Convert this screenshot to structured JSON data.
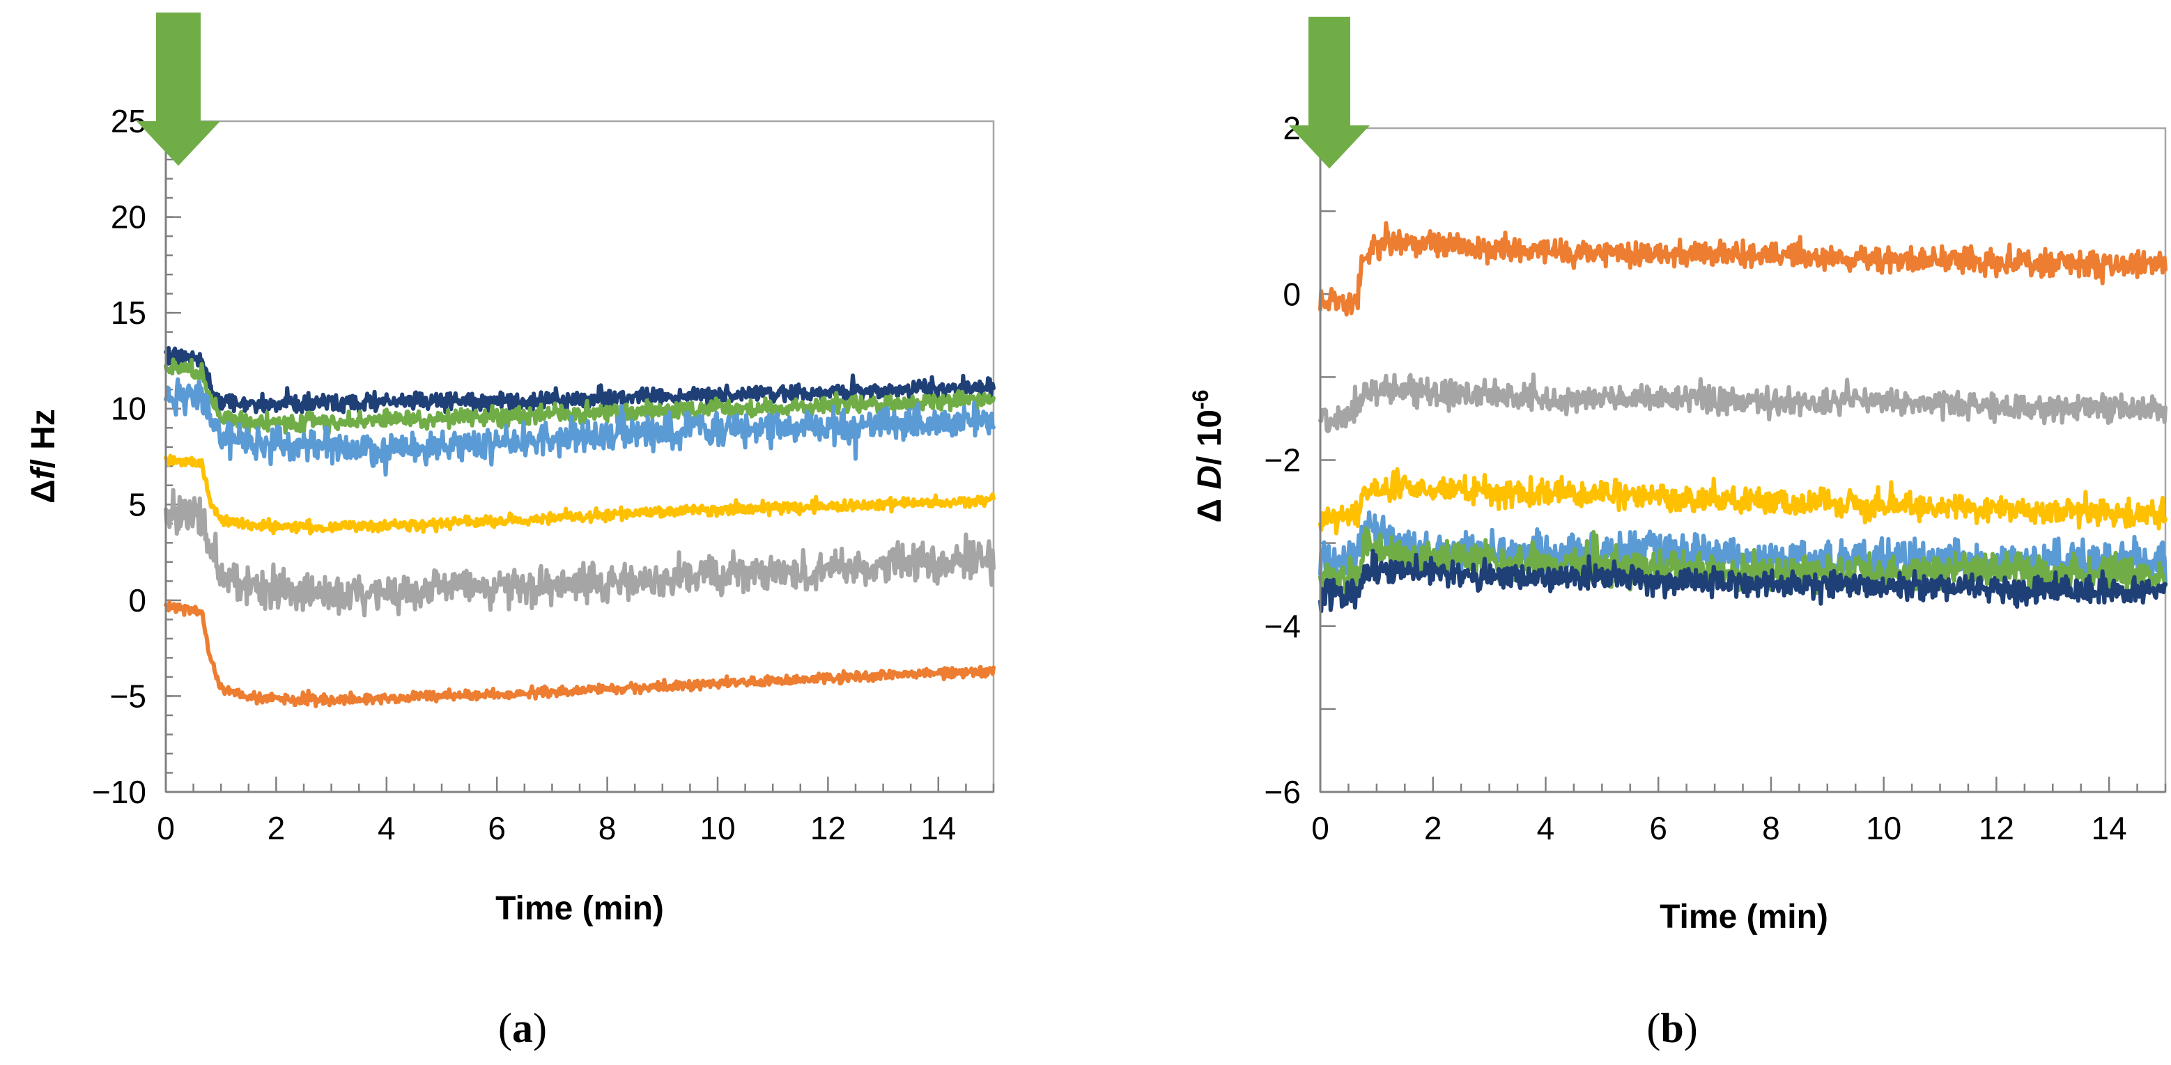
{
  "colors": {
    "navy": "#1f3f77",
    "green": "#70ad47",
    "light_blue": "#5b9bd5",
    "yellow": "#ffc000",
    "gray": "#a5a5a5",
    "orange": "#ed7d31",
    "arrow": "#70ad47"
  },
  "panel_labels": {
    "a": "a",
    "b": "b"
  },
  "chart_data": [
    {
      "type": "line",
      "panel": "a",
      "title": "",
      "xlabel": "Time (min)",
      "ylabel_prefix": "Δ",
      "ylabel_var": "f",
      "ylabel_suffix": "/ Hz",
      "xlim": [
        0,
        15
      ],
      "ylim": [
        -10,
        25
      ],
      "xticks": [
        0,
        2,
        4,
        6,
        8,
        10,
        12,
        14
      ],
      "xtick_labels": [
        "0",
        "2",
        "4",
        "6",
        "8",
        "10",
        "12",
        "14"
      ],
      "yticks": [
        -10,
        -5,
        0,
        5,
        10,
        15,
        20,
        25
      ],
      "ytick_labels": [
        "−10",
        "−5",
        "0",
        "5",
        "10",
        "15",
        "20",
        "25"
      ],
      "annotation": "injection-arrow at t = 0",
      "series": [
        {
          "name": "navy",
          "color": "#1f3f77",
          "noise": 0.35,
          "points": [
            [
              0,
              12.8
            ],
            [
              0.65,
              12.6
            ],
            [
              0.8,
              11.2
            ],
            [
              1.0,
              10.4
            ],
            [
              1.5,
              10.2
            ],
            [
              3,
              10.3
            ],
            [
              5,
              10.4
            ],
            [
              7,
              10.4
            ],
            [
              9,
              10.6
            ],
            [
              11,
              10.8
            ],
            [
              13,
              11.0
            ],
            [
              15,
              11.2
            ]
          ]
        },
        {
          "name": "green",
          "color": "#70ad47",
          "noise": 0.35,
          "points": [
            [
              0,
              12.2
            ],
            [
              0.65,
              12.0
            ],
            [
              0.8,
              10.4
            ],
            [
              1.0,
              9.6
            ],
            [
              1.5,
              9.3
            ],
            [
              3,
              9.3
            ],
            [
              5,
              9.5
            ],
            [
              7,
              9.7
            ],
            [
              9,
              9.9
            ],
            [
              11,
              10.1
            ],
            [
              13,
              10.3
            ],
            [
              15,
              10.5
            ]
          ]
        },
        {
          "name": "light_blue",
          "color": "#5b9bd5",
          "noise": 0.65,
          "points": [
            [
              0,
              10.7
            ],
            [
              0.65,
              10.5
            ],
            [
              0.8,
              9.2
            ],
            [
              1.0,
              8.5
            ],
            [
              1.5,
              8.2
            ],
            [
              3,
              8.0
            ],
            [
              4,
              7.9
            ],
            [
              6,
              8.2
            ],
            [
              8,
              8.6
            ],
            [
              10,
              8.9
            ],
            [
              12,
              9.0
            ],
            [
              15,
              9.4
            ]
          ]
        },
        {
          "name": "yellow",
          "color": "#ffc000",
          "noise": 0.22,
          "points": [
            [
              0,
              7.3
            ],
            [
              0.65,
              7.2
            ],
            [
              0.8,
              5.2
            ],
            [
              1.0,
              4.2
            ],
            [
              1.5,
              3.9
            ],
            [
              3,
              3.8
            ],
            [
              5,
              4.0
            ],
            [
              7,
              4.3
            ],
            [
              9,
              4.6
            ],
            [
              11,
              4.8
            ],
            [
              13,
              5.0
            ],
            [
              15,
              5.2
            ]
          ]
        },
        {
          "name": "gray",
          "color": "#a5a5a5",
          "noise": 0.75,
          "points": [
            [
              0,
              4.6
            ],
            [
              0.65,
              4.4
            ],
            [
              0.8,
              2.4
            ],
            [
              1.0,
              1.2
            ],
            [
              1.5,
              0.6
            ],
            [
              3,
              0.3
            ],
            [
              5,
              0.6
            ],
            [
              7,
              0.8
            ],
            [
              9,
              1.2
            ],
            [
              11,
              1.5
            ],
            [
              13,
              1.8
            ],
            [
              15,
              2.1
            ]
          ]
        },
        {
          "name": "orange",
          "color": "#ed7d31",
          "noise": 0.2,
          "points": [
            [
              0,
              -0.2
            ],
            [
              0.65,
              -0.6
            ],
            [
              0.8,
              -3.0
            ],
            [
              1.0,
              -4.6
            ],
            [
              1.5,
              -5.1
            ],
            [
              3,
              -5.2
            ],
            [
              5,
              -5.0
            ],
            [
              7,
              -4.8
            ],
            [
              9,
              -4.5
            ],
            [
              11,
              -4.2
            ],
            [
              13,
              -3.9
            ],
            [
              15,
              -3.7
            ]
          ]
        }
      ]
    },
    {
      "type": "line",
      "panel": "b",
      "title": "",
      "xlabel": "Time (min)",
      "ylabel_prefix": "Δ ",
      "ylabel_var": "D",
      "ylabel_suffix": "/ 10",
      "ylabel_exponent": "-6",
      "xlim": [
        0,
        15
      ],
      "ylim": [
        -6,
        2
      ],
      "xticks": [
        0,
        2,
        4,
        6,
        8,
        10,
        12,
        14
      ],
      "xtick_labels": [
        "0",
        "2",
        "4",
        "6",
        "8",
        "10",
        "12",
        "14"
      ],
      "yticks": [
        -6,
        -5,
        -4,
        -3,
        -2,
        -1,
        0,
        1,
        2
      ],
      "ytick_labels": [
        "−6",
        "",
        "−4",
        "",
        "−2",
        "",
        "0",
        "",
        "2"
      ],
      "annotation": "injection-arrow at t = 0",
      "series": [
        {
          "name": "orange",
          "color": "#ed7d31",
          "noise": 0.12,
          "points": [
            [
              0,
              -0.05
            ],
            [
              0.65,
              -0.1
            ],
            [
              0.75,
              0.4
            ],
            [
              1.0,
              0.6
            ],
            [
              2,
              0.6
            ],
            [
              4,
              0.5
            ],
            [
              6,
              0.5
            ],
            [
              8,
              0.45
            ],
            [
              10,
              0.42
            ],
            [
              12,
              0.38
            ],
            [
              15,
              0.35
            ]
          ]
        },
        {
          "name": "gray",
          "color": "#a5a5a5",
          "noise": 0.12,
          "points": [
            [
              0,
              -1.5
            ],
            [
              0.65,
              -1.45
            ],
            [
              0.75,
              -1.2
            ],
            [
              1.0,
              -1.15
            ],
            [
              2,
              -1.2
            ],
            [
              4,
              -1.25
            ],
            [
              6,
              -1.25
            ],
            [
              8,
              -1.3
            ],
            [
              10,
              -1.3
            ],
            [
              12,
              -1.35
            ],
            [
              15,
              -1.4
            ]
          ]
        },
        {
          "name": "yellow",
          "color": "#ffc000",
          "noise": 0.12,
          "points": [
            [
              0,
              -2.7
            ],
            [
              0.65,
              -2.7
            ],
            [
              0.75,
              -2.4
            ],
            [
              1.0,
              -2.35
            ],
            [
              2,
              -2.35
            ],
            [
              4,
              -2.4
            ],
            [
              6,
              -2.45
            ],
            [
              8,
              -2.5
            ],
            [
              10,
              -2.55
            ],
            [
              12,
              -2.6
            ],
            [
              15,
              -2.65
            ]
          ]
        },
        {
          "name": "light_blue",
          "color": "#5b9bd5",
          "noise": 0.18,
          "points": [
            [
              0,
              -3.2
            ],
            [
              0.65,
              -3.2
            ],
            [
              0.8,
              -2.8
            ],
            [
              1.0,
              -2.9
            ],
            [
              2,
              -3.1
            ],
            [
              4,
              -3.15
            ],
            [
              6,
              -3.1
            ],
            [
              8,
              -3.2
            ],
            [
              10,
              -3.2
            ],
            [
              12,
              -3.25
            ],
            [
              15,
              -3.2
            ]
          ]
        },
        {
          "name": "green",
          "color": "#70ad47",
          "noise": 0.16,
          "points": [
            [
              0,
              -3.4
            ],
            [
              0.65,
              -3.4
            ],
            [
              0.8,
              -3.0
            ],
            [
              1.0,
              -3.1
            ],
            [
              2,
              -3.2
            ],
            [
              4,
              -3.25
            ],
            [
              6,
              -3.3
            ],
            [
              8,
              -3.35
            ],
            [
              10,
              -3.35
            ],
            [
              12,
              -3.35
            ],
            [
              15,
              -3.4
            ]
          ]
        },
        {
          "name": "navy",
          "color": "#1f3f77",
          "noise": 0.12,
          "points": [
            [
              0,
              -3.65
            ],
            [
              0.65,
              -3.6
            ],
            [
              0.8,
              -3.3
            ],
            [
              1.0,
              -3.3
            ],
            [
              2,
              -3.35
            ],
            [
              4,
              -3.4
            ],
            [
              6,
              -3.45
            ],
            [
              8,
              -3.5
            ],
            [
              10,
              -3.5
            ],
            [
              12,
              -3.55
            ],
            [
              15,
              -3.6
            ]
          ]
        }
      ]
    }
  ]
}
